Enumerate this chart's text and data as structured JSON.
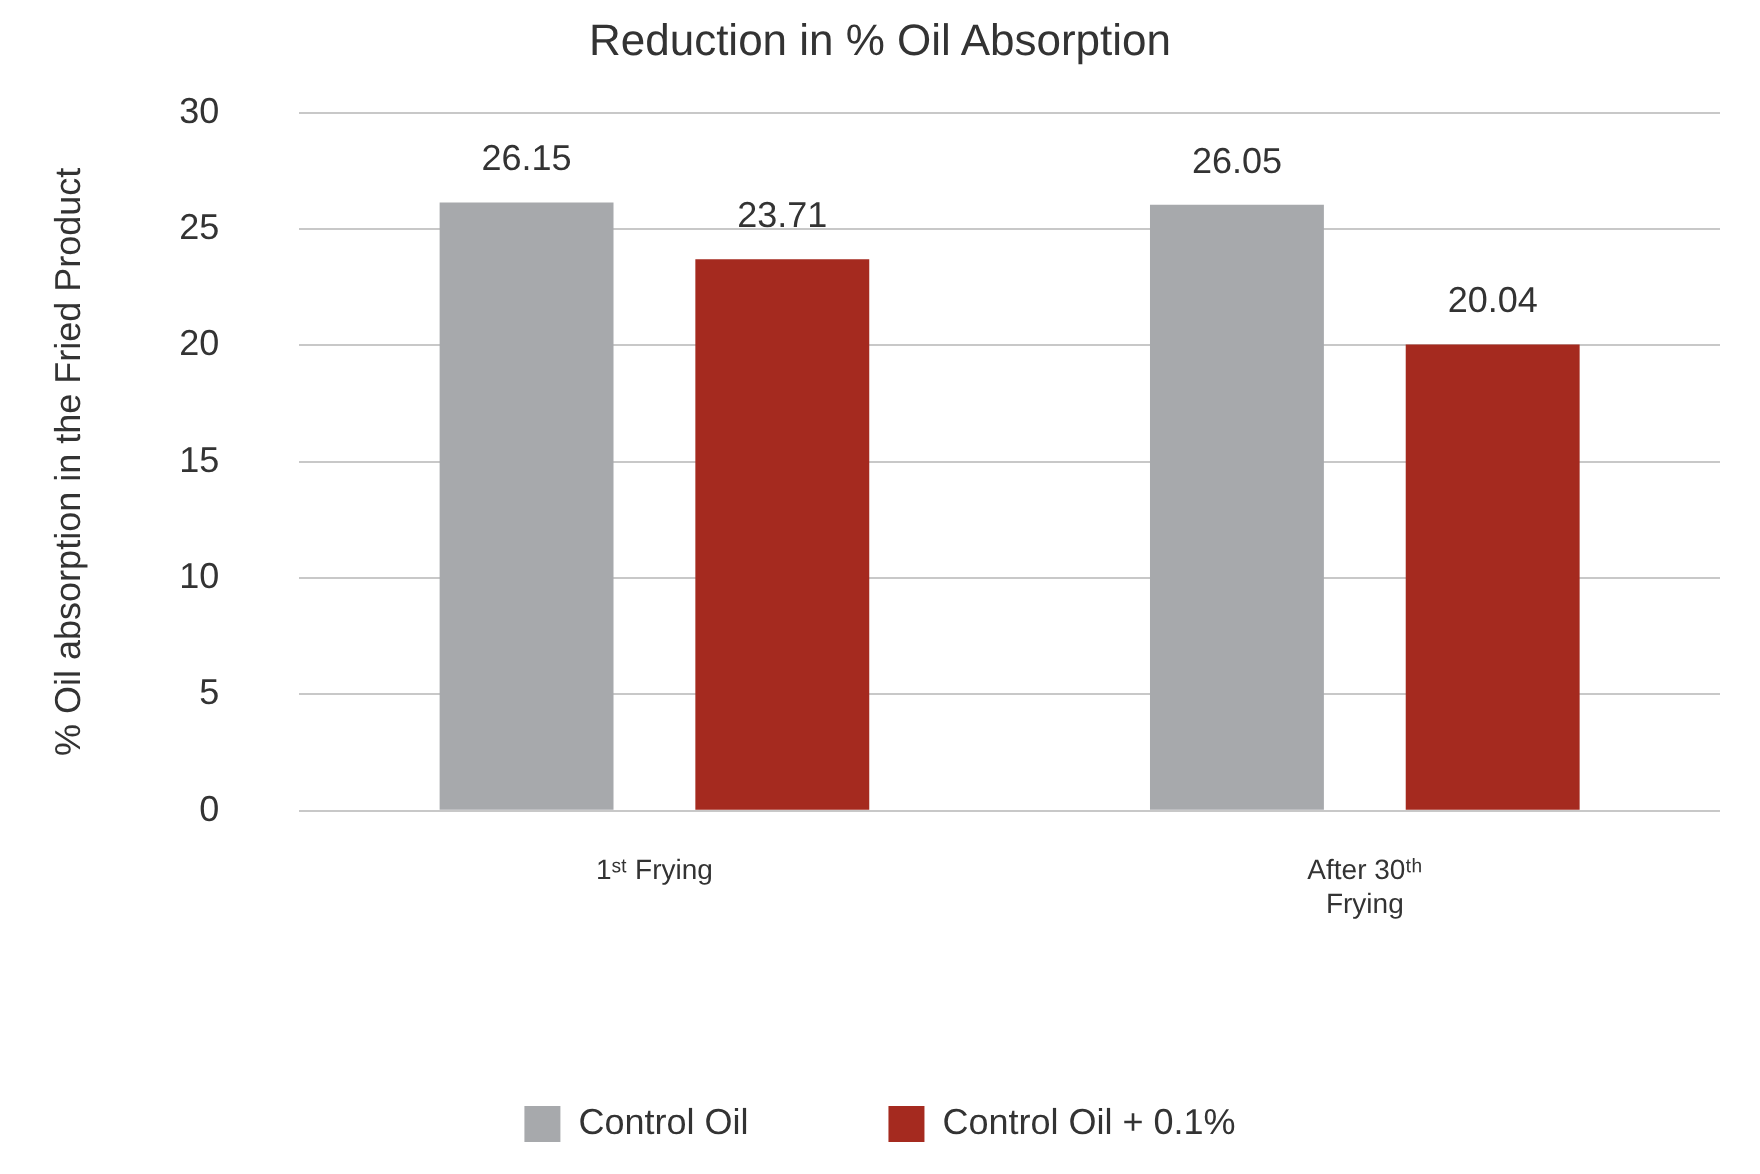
{
  "chart_data": {
    "type": "bar",
    "title": "Reduction in % Oil Absorption",
    "ylabel": "% Oil absorption in the Fried Product",
    "categories": [
      "1ˢᵗ Frying",
      "After 30ᵗʰ Frying"
    ],
    "series": [
      {
        "name": "Control Oil",
        "color": "#a7a9ac",
        "values": [
          26.15,
          26.05
        ]
      },
      {
        "name": "Control Oil + 0.1%",
        "color": "#a52a1f",
        "values": [
          23.71,
          20.04
        ]
      }
    ],
    "ylim": [
      0,
      30
    ],
    "yticks": [
      0,
      5,
      10,
      15,
      20,
      25,
      30
    ],
    "grid": "y",
    "legend": "bottom",
    "data_labels": true
  }
}
